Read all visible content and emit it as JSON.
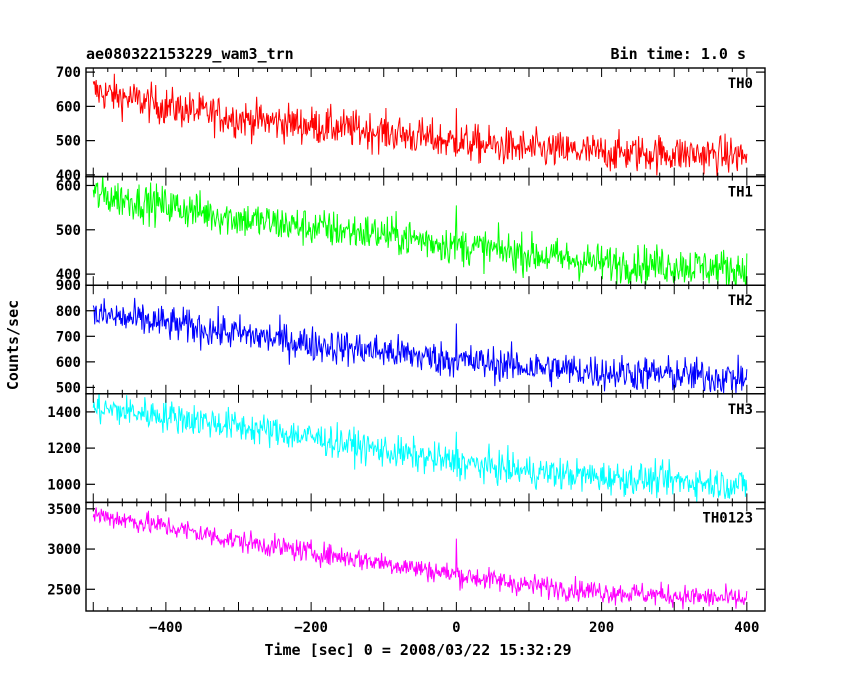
{
  "header": {
    "title": "ae080322153229_wam3_trn",
    "bin_time": "Bin time: 1.0 s"
  },
  "chart_data": {
    "type": "line",
    "title": "ae080322153229_wam3_trn",
    "subtitle": "Bin time: 1.0 s",
    "xlabel": "Time [sec] 0 = 2008/03/22 15:32:29",
    "ylabel": "Counts/sec",
    "xlim": [
      -510,
      425
    ],
    "x_ticks": [
      -400,
      -200,
      0,
      200,
      400
    ],
    "x_tick_labels": [
      "−400",
      "−200",
      "0",
      "200",
      "400"
    ],
    "x_start": -500,
    "x_end": 400,
    "bin_time": 1.0,
    "burst_time": 0,
    "panels": [
      {
        "name": "TH0",
        "color": "#ff0000",
        "ylim": [
          395,
          712
        ],
        "y_ticks": [
          400,
          500,
          600,
          700
        ],
        "x": [
          -500,
          -400,
          -300,
          -200,
          -100,
          0,
          100,
          200,
          300,
          400
        ],
        "y": [
          645,
          600,
          565,
          545,
          525,
          495,
          475,
          465,
          462,
          455
        ],
        "noise": 28,
        "burst_peak": 595
      },
      {
        "name": "TH1",
        "color": "#00ff00",
        "ylim": [
          375,
          620
        ],
        "y_ticks": [
          400,
          500,
          600
        ],
        "x": [
          -500,
          -400,
          -300,
          -200,
          -100,
          0,
          100,
          200,
          300,
          400
        ],
        "y": [
          580,
          555,
          525,
          505,
          490,
          465,
          445,
          425,
          420,
          410
        ],
        "noise": 22,
        "burst_peak": 555
      },
      {
        "name": "TH2",
        "color": "#0000ff",
        "ylim": [
          475,
          900
        ],
        "y_ticks": [
          500,
          600,
          700,
          800,
          900
        ],
        "x": [
          -500,
          -400,
          -300,
          -200,
          -100,
          0,
          100,
          200,
          300,
          400
        ],
        "y": [
          785,
          750,
          710,
          670,
          640,
          605,
          580,
          560,
          550,
          535
        ],
        "noise": 35,
        "burst_peak": 750
      },
      {
        "name": "TH3",
        "color": "#00ffff",
        "ylim": [
          900,
          1500
        ],
        "y_ticks": [
          1000,
          1200,
          1400
        ],
        "x": [
          -500,
          -400,
          -300,
          -200,
          -100,
          0,
          100,
          200,
          300,
          400
        ],
        "y": [
          1420,
          1380,
          1320,
          1260,
          1185,
          1120,
          1070,
          1040,
          1020,
          995
        ],
        "noise": 45,
        "burst_peak": 1290
      },
      {
        "name": "TH0123",
        "color": "#ff00ff",
        "ylim": [
          2230,
          3580
        ],
        "y_ticks": [
          2500,
          3000,
          3500
        ],
        "x": [
          -500,
          -400,
          -300,
          -200,
          -100,
          0,
          100,
          200,
          300,
          400
        ],
        "y": [
          3430,
          3280,
          3100,
          2960,
          2830,
          2680,
          2550,
          2470,
          2420,
          2370
        ],
        "noise": 70,
        "burst_peak": 3130
      }
    ]
  }
}
